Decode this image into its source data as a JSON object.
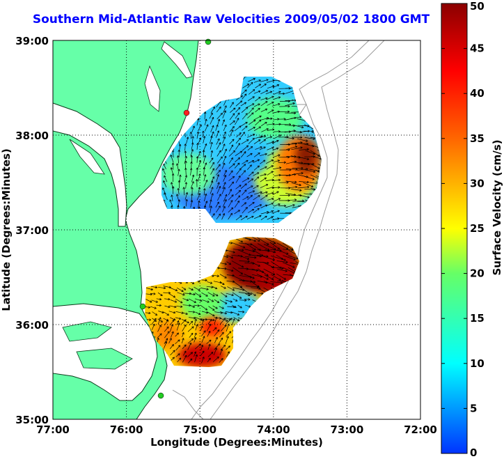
{
  "title": "Southern Mid-Atlantic Raw Velocities 2009/05/02 1800 GMT",
  "map": {
    "xlabel": "Longitude (Degrees:Minutes)",
    "ylabel": "Latitude (Degrees:Minutes)",
    "x_ticks": [
      "77:00",
      "76:00",
      "75:00",
      "74:00",
      "73:00",
      "72:00"
    ],
    "y_ticks": [
      "39:00",
      "38:00",
      "37:00",
      "36:00",
      "35:00"
    ],
    "grid": "dotted"
  },
  "colorbar": {
    "label": "Surface Velocity (cm/s)",
    "ticks": [
      "50",
      "45",
      "40",
      "35",
      "30",
      "25",
      "20",
      "15",
      "10",
      "5",
      "0"
    ],
    "range": [
      0,
      50
    ]
  },
  "colors": {
    "title": "#0000ff",
    "land": "#66ffa8",
    "water": "#ffffff",
    "station_north": "#22cc22",
    "station_red": "#ff2020"
  }
}
